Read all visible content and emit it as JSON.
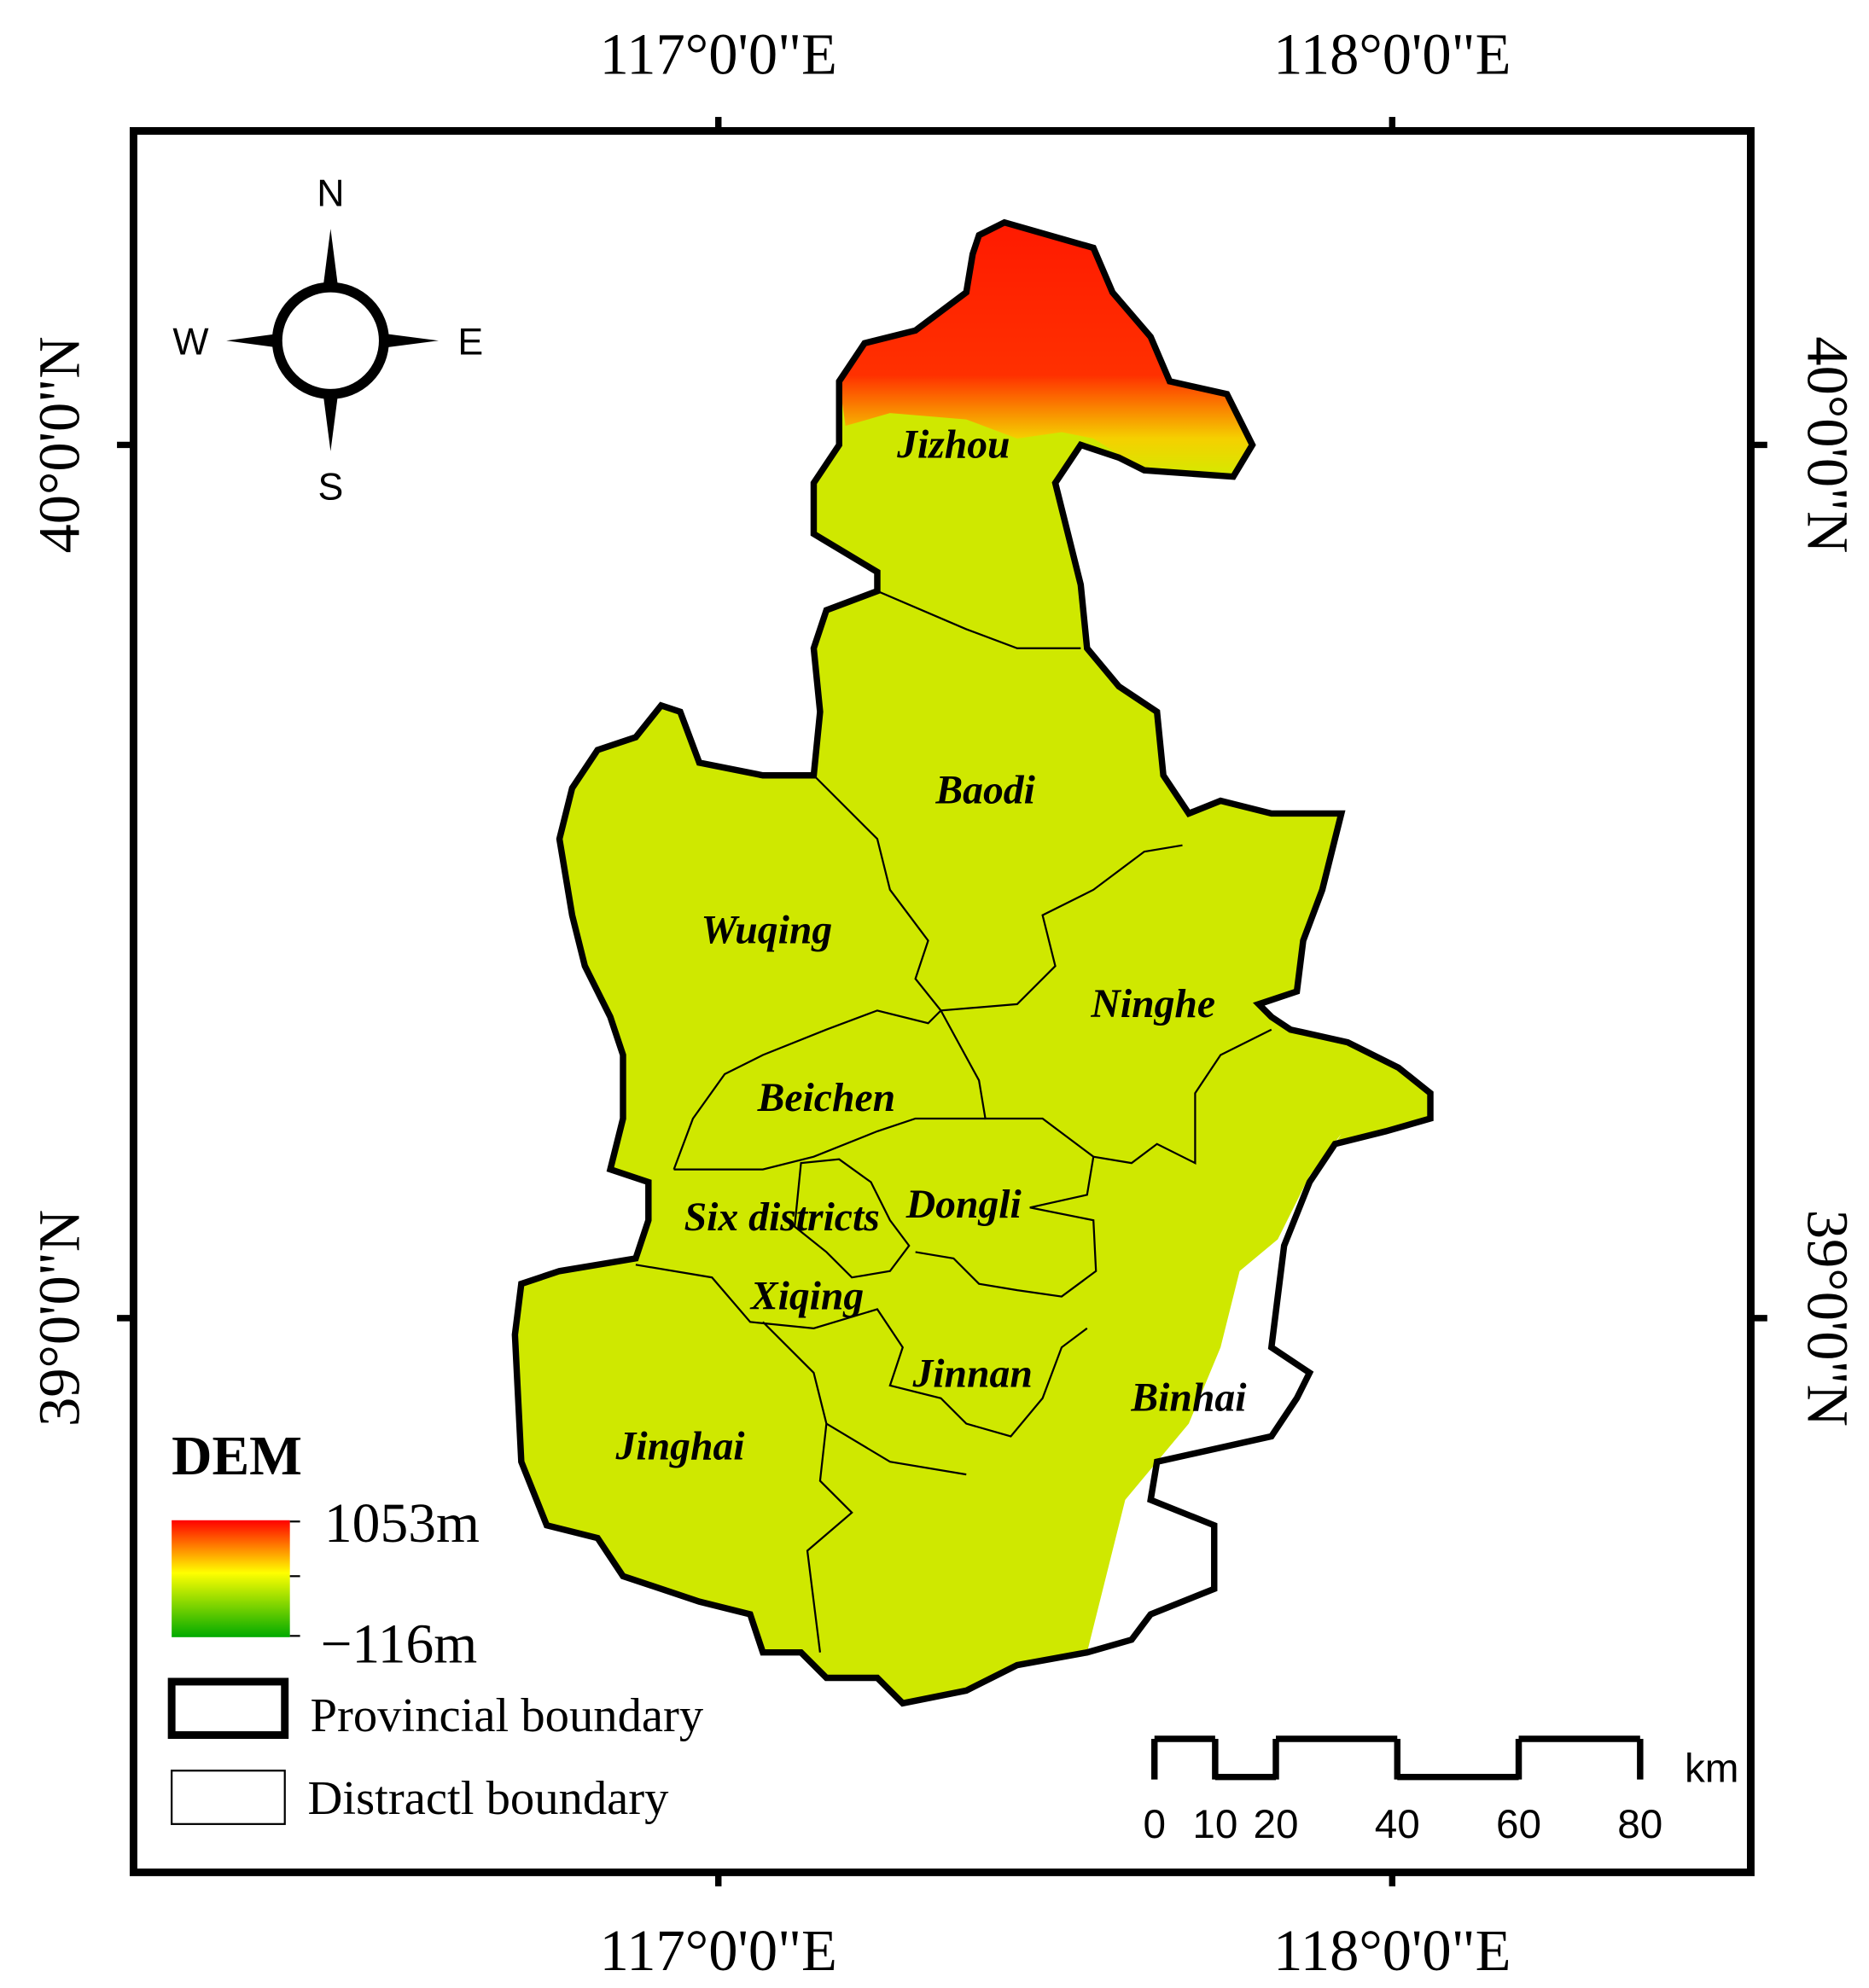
{
  "graticule": {
    "top": [
      "117°0'0\"E",
      "118°0'0\"E"
    ],
    "bottom": [
      "117°0'0\"E",
      "118°0'0\"E"
    ],
    "left": [
      "40°0'0\"N",
      "39°0'0\"N"
    ],
    "right": [
      "40°0'0\"N",
      "39°0'0\"N"
    ]
  },
  "compass": {
    "n": "N",
    "s": "S",
    "w": "W",
    "e": "E"
  },
  "districts": [
    "Jizhou",
    "Baodi",
    "Wuqing",
    "Ninghe",
    "Beichen",
    "Six districts",
    "Dongli",
    "Xiqing",
    "Jinnan",
    "Binhai",
    "Jinghai"
  ],
  "legend": {
    "title": "DEM",
    "high": "1053m",
    "low": "−116m",
    "items": [
      "Provincial boundary",
      "Distractl boundary"
    ]
  },
  "scale_bar": {
    "ticks": [
      0,
      10,
      20,
      40,
      60,
      80
    ],
    "unit": "km"
  }
}
